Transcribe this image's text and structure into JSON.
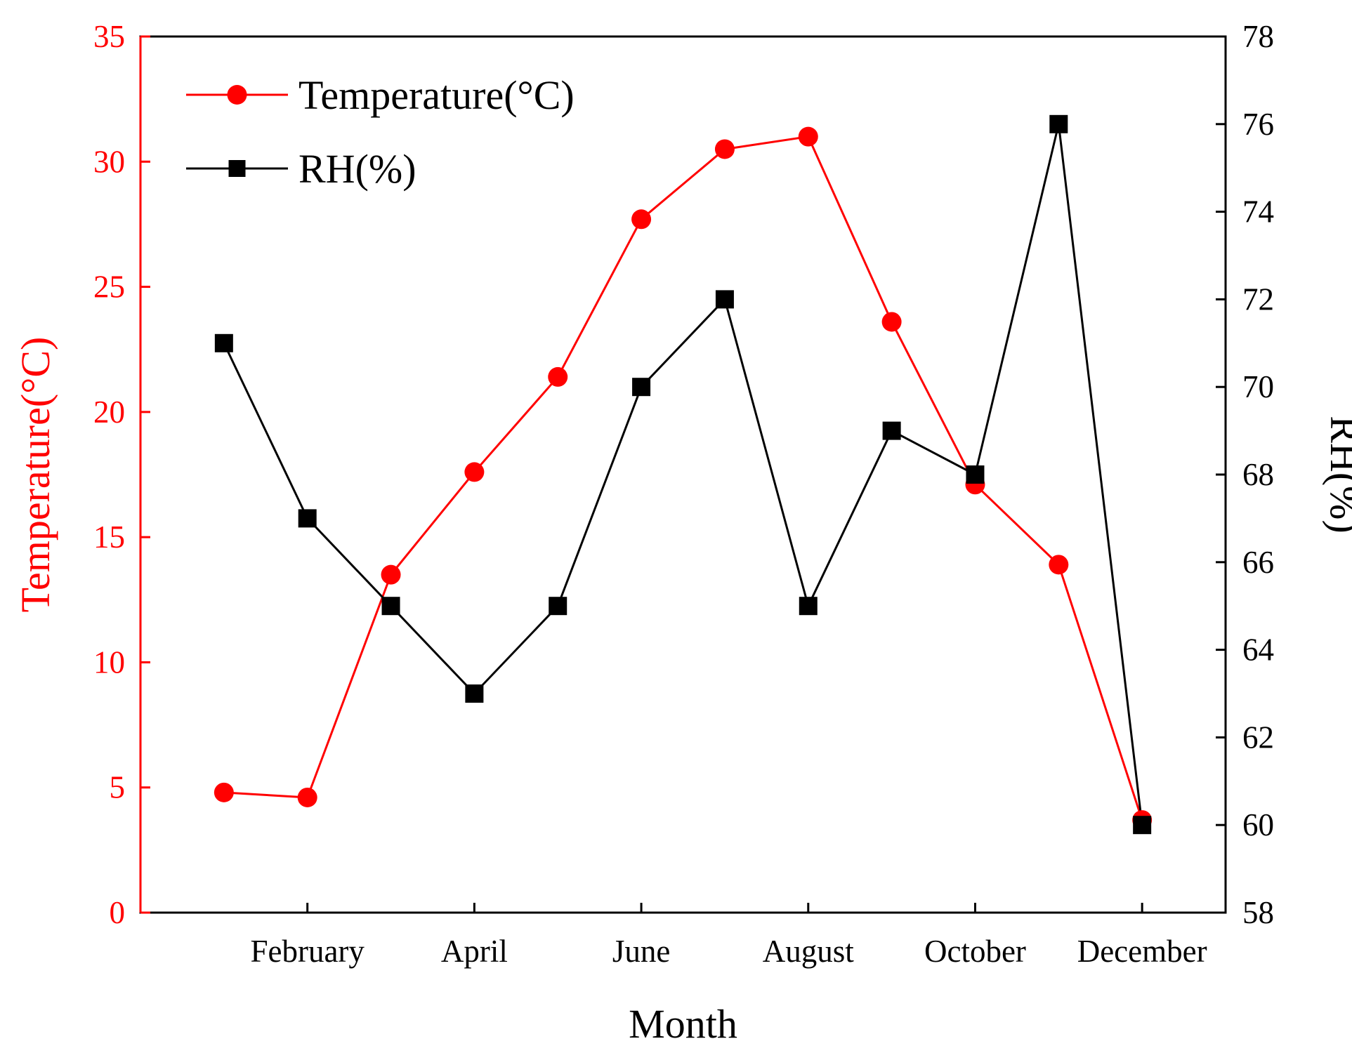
{
  "colors": {
    "temperature": "#ff0000",
    "rh": "#000000",
    "frame": "#000000"
  },
  "chart_data": {
    "type": "line",
    "x": [
      1,
      2,
      3,
      4,
      5,
      6,
      7,
      8,
      9,
      10,
      11,
      12
    ],
    "xlim": [
      0,
      13
    ],
    "x_tick_positions": [
      2,
      4,
      6,
      8,
      10,
      12
    ],
    "x_tick_labels": [
      "February",
      "April",
      "June",
      "August",
      "October",
      "December"
    ],
    "xlabel": "Month",
    "ylabel_left": "Temperature(°C)",
    "ylabel_right": "RH(%)",
    "ylim_left": [
      0,
      35
    ],
    "ylim_right": [
      58,
      78
    ],
    "y_ticks_left": [
      0,
      5,
      10,
      15,
      20,
      25,
      30,
      35
    ],
    "y_ticks_right": [
      58,
      60,
      62,
      64,
      66,
      68,
      70,
      72,
      74,
      76,
      78
    ],
    "grid": false,
    "legend_position": "top-left",
    "series": [
      {
        "name": "Temperature(°C)",
        "axis": "left",
        "marker": "circle",
        "color": "#ff0000",
        "values": [
          4.8,
          4.6,
          13.5,
          17.6,
          21.4,
          27.7,
          30.5,
          31.0,
          23.6,
          17.1,
          13.9,
          3.7
        ]
      },
      {
        "name": "RH(%)",
        "axis": "right",
        "marker": "square",
        "color": "#000000",
        "values": [
          71,
          67,
          65,
          63,
          65,
          70,
          72,
          65,
          69,
          68,
          76,
          60
        ]
      }
    ]
  }
}
